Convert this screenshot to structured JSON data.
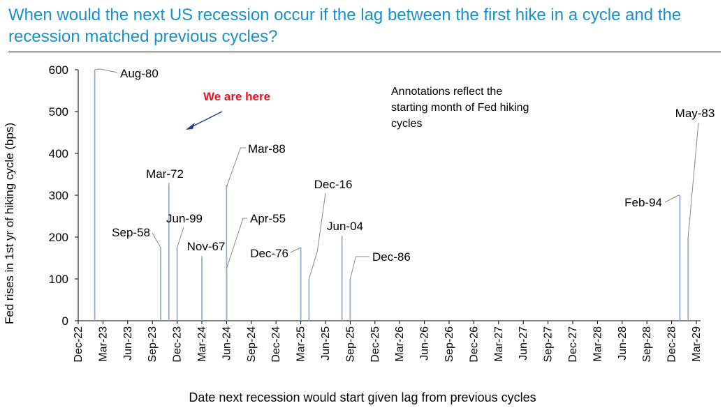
{
  "title": "When would the next US recession occur if the lag between the first hike in a cycle and the recession matched previous cycles?",
  "chart_data": {
    "type": "bar",
    "ylabel": "Fed rises in 1st yr of hiking cycle (bps)",
    "xlabel": "Date next recession would start given lag from previous cycles",
    "ylim": [
      0,
      600
    ],
    "yticks": [
      "0",
      "100",
      "200",
      "300",
      "400",
      "500",
      "600"
    ],
    "xticks": [
      "Dec-22",
      "Mar-23",
      "Jun-23",
      "Sep-23",
      "Dec-23",
      "Mar-24",
      "Jun-24",
      "Sep-24",
      "Dec-24",
      "Mar-25",
      "Jun-25",
      "Sep-25",
      "Dec-25",
      "Mar-26",
      "Jun-26",
      "Sep-26",
      "Dec-26",
      "Mar-27",
      "Jun-27",
      "Sep-27",
      "Dec-27",
      "Mar-28",
      "Jun-28",
      "Sep-28",
      "Dec-28",
      "Mar-29"
    ],
    "bars": [
      {
        "date": "Feb-23",
        "value": 600,
        "label": "Aug-80"
      },
      {
        "date": "Oct-23",
        "value": 175,
        "label": "Sep-58"
      },
      {
        "date": "Nov-23",
        "value": 325,
        "label": "Mar-72"
      },
      {
        "date": "Dec-23",
        "value": 175,
        "label": "Jun-99"
      },
      {
        "date": "Mar-24",
        "value": 150,
        "label": "Nov-67"
      },
      {
        "date": "Jun-24",
        "value": 325,
        "label": "Mar-88"
      },
      {
        "date": "Jun-24",
        "value": 125,
        "label": "Apr-55"
      },
      {
        "date": "Mar-25",
        "value": 175,
        "label": "Dec-76"
      },
      {
        "date": "Apr-25",
        "value": 100,
        "label": "Dec-16"
      },
      {
        "date": "Aug-25",
        "value": 200,
        "label": "Jun-04"
      },
      {
        "date": "Sep-25",
        "value": 100,
        "label": "Dec-86"
      },
      {
        "date": "Jan-29",
        "value": 300,
        "label": "Feb-94"
      },
      {
        "date": "Feb-29",
        "value": 200,
        "label": "May-83"
      }
    ],
    "annotations": {
      "here": "We are here",
      "here_color": "#e8121c",
      "note": "Annotations reflect the starting month of Fed hiking cycles"
    },
    "bar_color": "#9aaad0",
    "grid": false
  }
}
